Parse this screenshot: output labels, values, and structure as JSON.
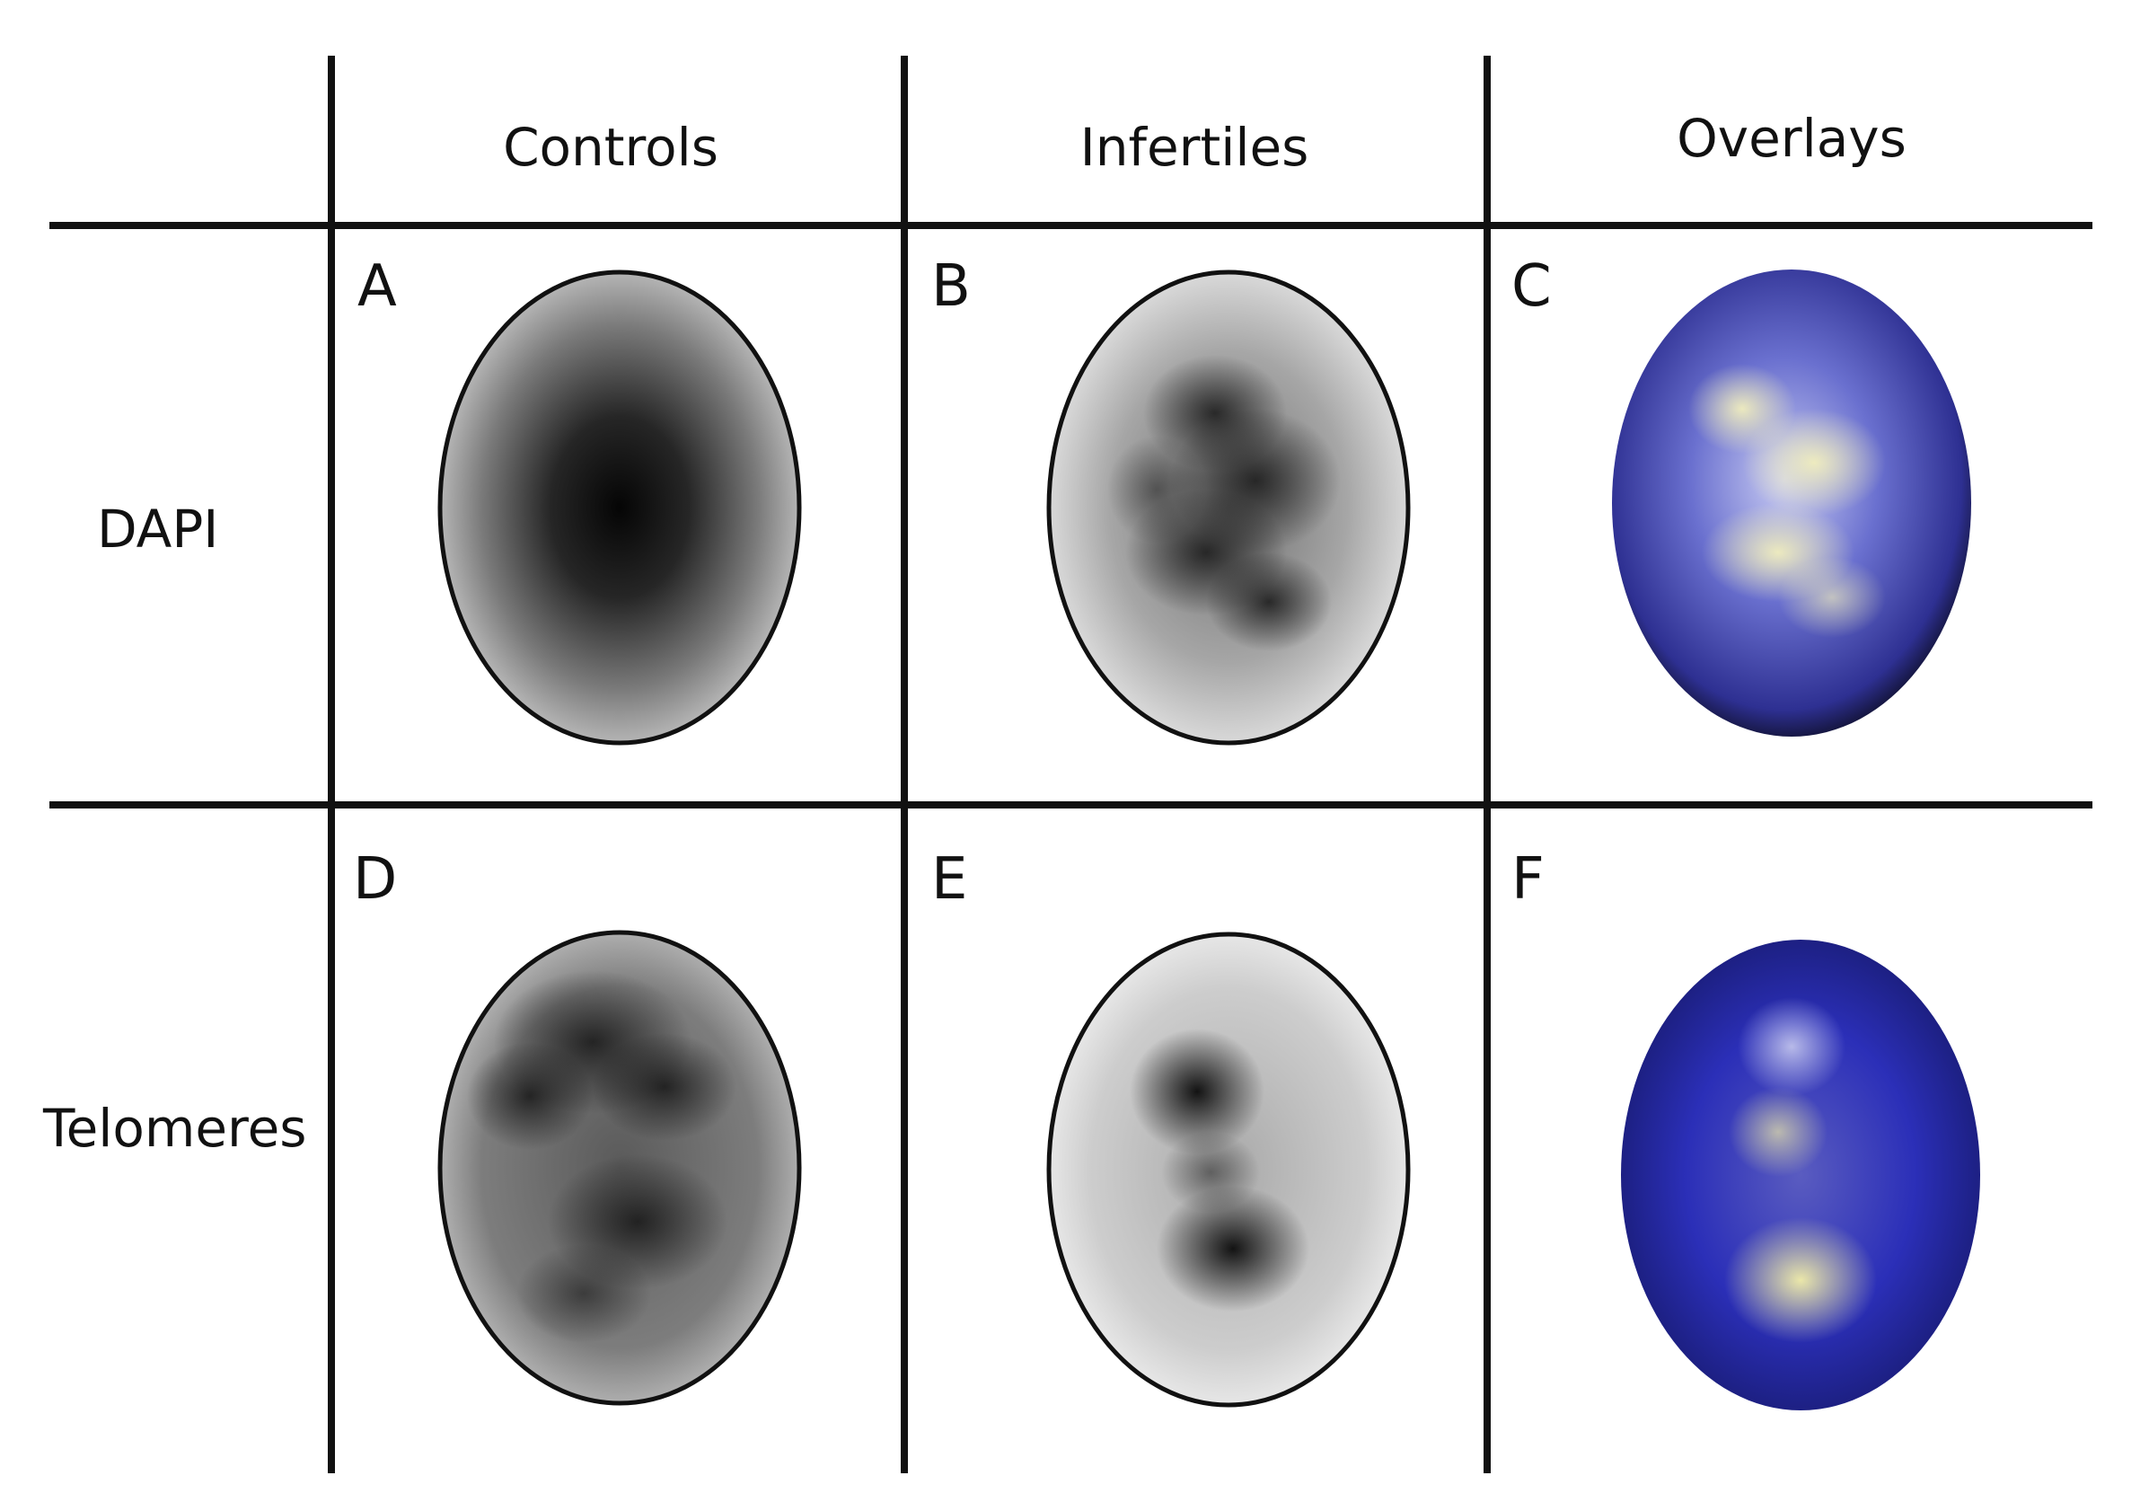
{
  "figure": {
    "columns": [
      "Controls",
      "Infertiles",
      "Overlays"
    ],
    "rows": [
      "DAPI",
      "Telomeres"
    ],
    "panels": [
      {
        "letter": "A",
        "row": "DAPI",
        "column": "Controls"
      },
      {
        "letter": "B",
        "row": "DAPI",
        "column": "Infertiles"
      },
      {
        "letter": "C",
        "row": "DAPI",
        "column": "Overlays"
      },
      {
        "letter": "D",
        "row": "Telomeres",
        "column": "Controls"
      },
      {
        "letter": "E",
        "row": "Telomeres",
        "column": "Infertiles"
      },
      {
        "letter": "F",
        "row": "Telomeres",
        "column": "Overlays"
      }
    ]
  },
  "colors": {
    "grid": "#111111",
    "overlay_blue": "#2b2fb8",
    "overlay_yellow": "#f4f0a8"
  }
}
